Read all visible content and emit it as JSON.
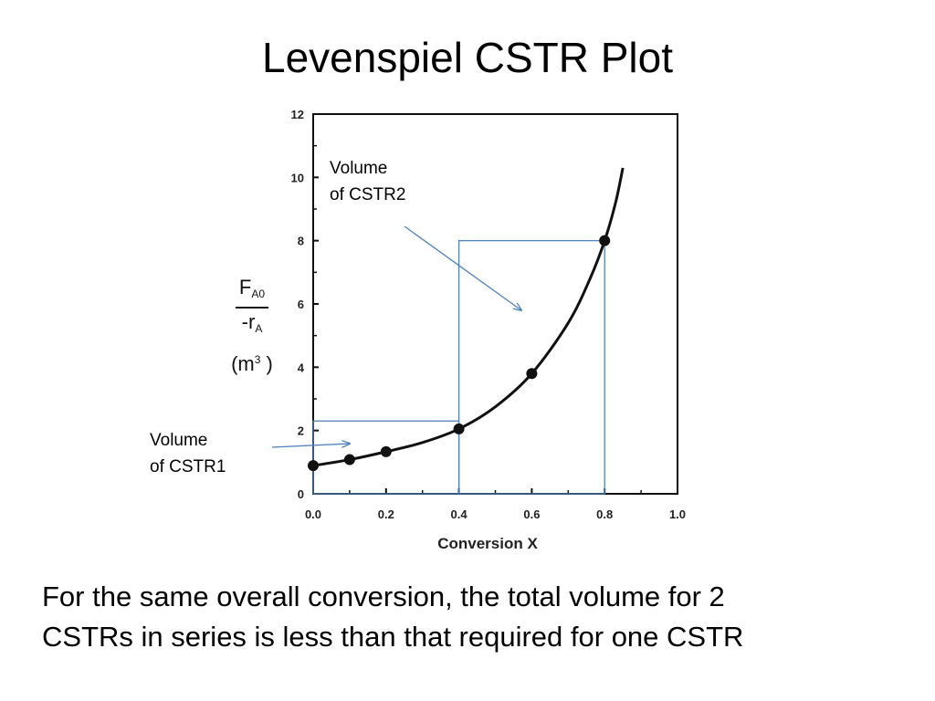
{
  "title": "Levenspiel CSTR Plot",
  "annotations": {
    "cstr2": [
      "Volume",
      "of CSTR2"
    ],
    "cstr1": [
      "Volume",
      "of CSTR1"
    ]
  },
  "caption": [
    "For the same overall conversion, the total volume for 2",
    "CSTRs in series is less than that required for one CSTR"
  ],
  "colors": {
    "curve": "#111111",
    "rectangles": "#4f81bd",
    "arrows": "#4f81bd"
  },
  "chart_data": {
    "type": "line",
    "xlabel": "Conversion X",
    "ylabel": {
      "numerator": "F",
      "numerator_sub": "A0",
      "denominator": "-r",
      "denominator_sub": "A",
      "unit_open": "(m",
      "unit_sup": "3",
      "unit_close": " )"
    },
    "xlim": [
      0.0,
      1.0
    ],
    "ylim": [
      0,
      12
    ],
    "xticks": [
      "0.0",
      "0.2",
      "0.4",
      "0.6",
      "0.8",
      "1.0"
    ],
    "xtick_values": [
      0.0,
      0.2,
      0.4,
      0.6,
      0.8,
      1.0
    ],
    "yticks": [
      "0",
      "2",
      "4",
      "6",
      "8",
      "10",
      "12"
    ],
    "ytick_values": [
      0,
      2,
      4,
      6,
      8,
      10,
      12
    ],
    "series": [
      {
        "points": [
          {
            "x": 0.0,
            "y": 0.89
          },
          {
            "x": 0.1,
            "y": 1.08
          },
          {
            "x": 0.2,
            "y": 1.33
          },
          {
            "x": 0.4,
            "y": 2.05
          },
          {
            "x": 0.6,
            "y": 3.8
          },
          {
            "x": 0.8,
            "y": 8.0
          }
        ],
        "curve": [
          {
            "x": 0.0,
            "y": 0.89
          },
          {
            "x": 0.1,
            "y": 1.08
          },
          {
            "x": 0.2,
            "y": 1.33
          },
          {
            "x": 0.3,
            "y": 1.62
          },
          {
            "x": 0.4,
            "y": 2.05
          },
          {
            "x": 0.5,
            "y": 2.75
          },
          {
            "x": 0.6,
            "y": 3.8
          },
          {
            "x": 0.7,
            "y": 5.4
          },
          {
            "x": 0.76,
            "y": 6.8
          },
          {
            "x": 0.8,
            "y": 8.0
          },
          {
            "x": 0.83,
            "y": 9.2
          },
          {
            "x": 0.85,
            "y": 10.3
          }
        ]
      }
    ],
    "rectangles": [
      {
        "x0": 0.0,
        "x1": 0.4,
        "y0": 0,
        "y1": 2.3
      },
      {
        "x0": 0.4,
        "x1": 0.8,
        "y0": 0,
        "y1": 8.0
      }
    ]
  }
}
